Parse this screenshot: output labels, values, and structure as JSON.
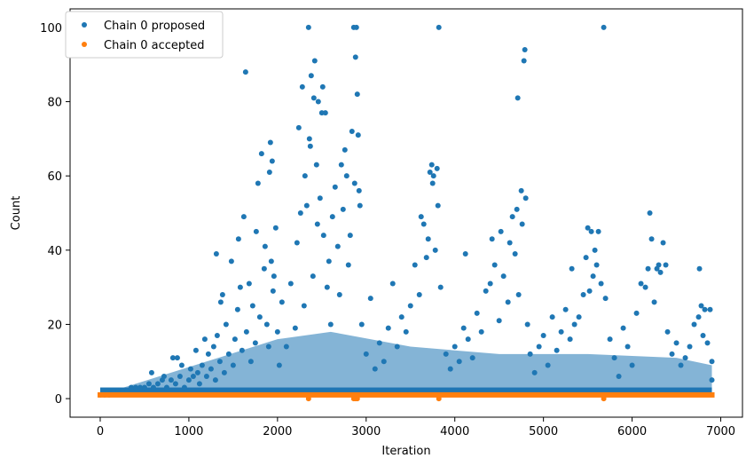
{
  "chart_data": {
    "type": "scatter",
    "title": "",
    "xlabel": "Iteration",
    "ylabel": "Count",
    "xlim": [
      -340,
      7245
    ],
    "ylim": [
      -5,
      105
    ],
    "xticks": [
      0,
      1000,
      2000,
      3000,
      4000,
      5000,
      6000,
      7000
    ],
    "yticks": [
      0,
      20,
      40,
      60,
      80,
      100
    ],
    "grid": false,
    "legend_position": "top-left",
    "series": [
      {
        "name": "Chain 0 proposed",
        "color": "#1f77b4",
        "points": [
          [
            0,
            1
          ],
          [
            50,
            1
          ],
          [
            100,
            1
          ],
          [
            150,
            2
          ],
          [
            200,
            2
          ],
          [
            250,
            2
          ],
          [
            300,
            2
          ],
          [
            350,
            3
          ],
          [
            400,
            3
          ],
          [
            450,
            3
          ],
          [
            500,
            3
          ],
          [
            550,
            4
          ],
          [
            580,
            7
          ],
          [
            600,
            3
          ],
          [
            650,
            4
          ],
          [
            700,
            5
          ],
          [
            720,
            6
          ],
          [
            750,
            3
          ],
          [
            800,
            5
          ],
          [
            820,
            11
          ],
          [
            850,
            4
          ],
          [
            870,
            11
          ],
          [
            900,
            6
          ],
          [
            920,
            9
          ],
          [
            950,
            3
          ],
          [
            1000,
            5
          ],
          [
            1020,
            8
          ],
          [
            1050,
            6
          ],
          [
            1080,
            13
          ],
          [
            1100,
            7
          ],
          [
            1120,
            4
          ],
          [
            1150,
            9
          ],
          [
            1180,
            16
          ],
          [
            1200,
            6
          ],
          [
            1220,
            12
          ],
          [
            1250,
            8
          ],
          [
            1280,
            14
          ],
          [
            1300,
            5
          ],
          [
            1310,
            39
          ],
          [
            1320,
            17
          ],
          [
            1350,
            10
          ],
          [
            1360,
            26
          ],
          [
            1380,
            28
          ],
          [
            1400,
            7
          ],
          [
            1420,
            20
          ],
          [
            1450,
            12
          ],
          [
            1480,
            37
          ],
          [
            1500,
            9
          ],
          [
            1520,
            16
          ],
          [
            1550,
            24
          ],
          [
            1560,
            43
          ],
          [
            1580,
            30
          ],
          [
            1600,
            13
          ],
          [
            1620,
            49
          ],
          [
            1640,
            88
          ],
          [
            1650,
            18
          ],
          [
            1680,
            31
          ],
          [
            1700,
            10
          ],
          [
            1720,
            25
          ],
          [
            1750,
            15
          ],
          [
            1760,
            45
          ],
          [
            1780,
            58
          ],
          [
            1800,
            22
          ],
          [
            1820,
            66
          ],
          [
            1850,
            35
          ],
          [
            1860,
            41
          ],
          [
            1880,
            20
          ],
          [
            1900,
            14
          ],
          [
            1910,
            61
          ],
          [
            1920,
            69
          ],
          [
            1930,
            37
          ],
          [
            1940,
            64
          ],
          [
            1950,
            29
          ],
          [
            1960,
            33
          ],
          [
            1980,
            46
          ],
          [
            2000,
            18
          ],
          [
            2020,
            9
          ],
          [
            2050,
            26
          ],
          [
            2100,
            14
          ],
          [
            2150,
            31
          ],
          [
            2200,
            19
          ],
          [
            2220,
            42
          ],
          [
            2240,
            73
          ],
          [
            2260,
            50
          ],
          [
            2280,
            84
          ],
          [
            2300,
            25
          ],
          [
            2310,
            60
          ],
          [
            2330,
            52
          ],
          [
            2350,
            100
          ],
          [
            2360,
            70
          ],
          [
            2370,
            68
          ],
          [
            2380,
            87
          ],
          [
            2400,
            33
          ],
          [
            2410,
            81
          ],
          [
            2420,
            91
          ],
          [
            2440,
            63
          ],
          [
            2450,
            47
          ],
          [
            2460,
            80
          ],
          [
            2480,
            54
          ],
          [
            2500,
            77
          ],
          [
            2510,
            84
          ],
          [
            2520,
            44
          ],
          [
            2540,
            77
          ],
          [
            2560,
            30
          ],
          [
            2580,
            37
          ],
          [
            2600,
            20
          ],
          [
            2620,
            49
          ],
          [
            2650,
            57
          ],
          [
            2680,
            41
          ],
          [
            2700,
            28
          ],
          [
            2720,
            63
          ],
          [
            2740,
            51
          ],
          [
            2760,
            67
          ],
          [
            2780,
            60
          ],
          [
            2800,
            36
          ],
          [
            2820,
            44
          ],
          [
            2840,
            72
          ],
          [
            2860,
            100
          ],
          [
            2870,
            58
          ],
          [
            2880,
            92
          ],
          [
            2890,
            100
          ],
          [
            2900,
            82
          ],
          [
            2910,
            71
          ],
          [
            2920,
            56
          ],
          [
            2930,
            52
          ],
          [
            2950,
            20
          ],
          [
            3000,
            12
          ],
          [
            3050,
            27
          ],
          [
            3100,
            8
          ],
          [
            3150,
            15
          ],
          [
            3200,
            10
          ],
          [
            3250,
            19
          ],
          [
            3300,
            31
          ],
          [
            3350,
            14
          ],
          [
            3400,
            22
          ],
          [
            3450,
            18
          ],
          [
            3500,
            25
          ],
          [
            3550,
            36
          ],
          [
            3600,
            28
          ],
          [
            3620,
            49
          ],
          [
            3650,
            47
          ],
          [
            3680,
            38
          ],
          [
            3700,
            43
          ],
          [
            3720,
            61
          ],
          [
            3740,
            63
          ],
          [
            3750,
            58
          ],
          [
            3760,
            60
          ],
          [
            3780,
            40
          ],
          [
            3800,
            62
          ],
          [
            3810,
            52
          ],
          [
            3820,
            100
          ],
          [
            3840,
            30
          ],
          [
            3900,
            12
          ],
          [
            3950,
            8
          ],
          [
            4000,
            14
          ],
          [
            4050,
            10
          ],
          [
            4100,
            19
          ],
          [
            4120,
            39
          ],
          [
            4150,
            16
          ],
          [
            4200,
            11
          ],
          [
            4250,
            23
          ],
          [
            4300,
            18
          ],
          [
            4350,
            29
          ],
          [
            4400,
            31
          ],
          [
            4420,
            43
          ],
          [
            4450,
            36
          ],
          [
            4500,
            21
          ],
          [
            4520,
            45
          ],
          [
            4550,
            33
          ],
          [
            4600,
            26
          ],
          [
            4620,
            42
          ],
          [
            4650,
            49
          ],
          [
            4680,
            39
          ],
          [
            4700,
            51
          ],
          [
            4710,
            81
          ],
          [
            4720,
            28
          ],
          [
            4750,
            56
          ],
          [
            4760,
            47
          ],
          [
            4780,
            91
          ],
          [
            4790,
            94
          ],
          [
            4800,
            54
          ],
          [
            4820,
            20
          ],
          [
            4850,
            12
          ],
          [
            4900,
            7
          ],
          [
            4950,
            14
          ],
          [
            5000,
            17
          ],
          [
            5050,
            9
          ],
          [
            5100,
            22
          ],
          [
            5150,
            13
          ],
          [
            5200,
            18
          ],
          [
            5250,
            24
          ],
          [
            5300,
            16
          ],
          [
            5320,
            35
          ],
          [
            5350,
            20
          ],
          [
            5400,
            22
          ],
          [
            5450,
            28
          ],
          [
            5480,
            38
          ],
          [
            5500,
            46
          ],
          [
            5520,
            29
          ],
          [
            5540,
            45
          ],
          [
            5560,
            33
          ],
          [
            5580,
            40
          ],
          [
            5600,
            36
          ],
          [
            5620,
            45
          ],
          [
            5650,
            31
          ],
          [
            5680,
            100
          ],
          [
            5700,
            27
          ],
          [
            5750,
            16
          ],
          [
            5800,
            11
          ],
          [
            5850,
            6
          ],
          [
            5900,
            19
          ],
          [
            5950,
            14
          ],
          [
            6000,
            9
          ],
          [
            6050,
            23
          ],
          [
            6100,
            31
          ],
          [
            6150,
            30
          ],
          [
            6180,
            35
          ],
          [
            6200,
            50
          ],
          [
            6220,
            43
          ],
          [
            6250,
            26
          ],
          [
            6280,
            35
          ],
          [
            6300,
            36
          ],
          [
            6320,
            34
          ],
          [
            6350,
            42
          ],
          [
            6380,
            36
          ],
          [
            6400,
            18
          ],
          [
            6450,
            12
          ],
          [
            6500,
            15
          ],
          [
            6550,
            9
          ],
          [
            6600,
            11
          ],
          [
            6650,
            14
          ],
          [
            6700,
            20
          ],
          [
            6750,
            22
          ],
          [
            6760,
            35
          ],
          [
            6780,
            25
          ],
          [
            6800,
            17
          ],
          [
            6820,
            24
          ],
          [
            6850,
            15
          ],
          [
            6880,
            24
          ],
          [
            6900,
            10
          ],
          [
            6900,
            5
          ]
        ]
      },
      {
        "name": "Chain 0 accepted",
        "color": "#ff7f0e",
        "points": [
          [
            2350,
            0
          ],
          [
            2860,
            0
          ],
          [
            2880,
            0
          ],
          [
            2900,
            0
          ],
          [
            3820,
            0
          ],
          [
            5680,
            0
          ]
        ],
        "baseline_value": 1,
        "baseline_x_range": [
          0,
          6900
        ]
      }
    ]
  }
}
